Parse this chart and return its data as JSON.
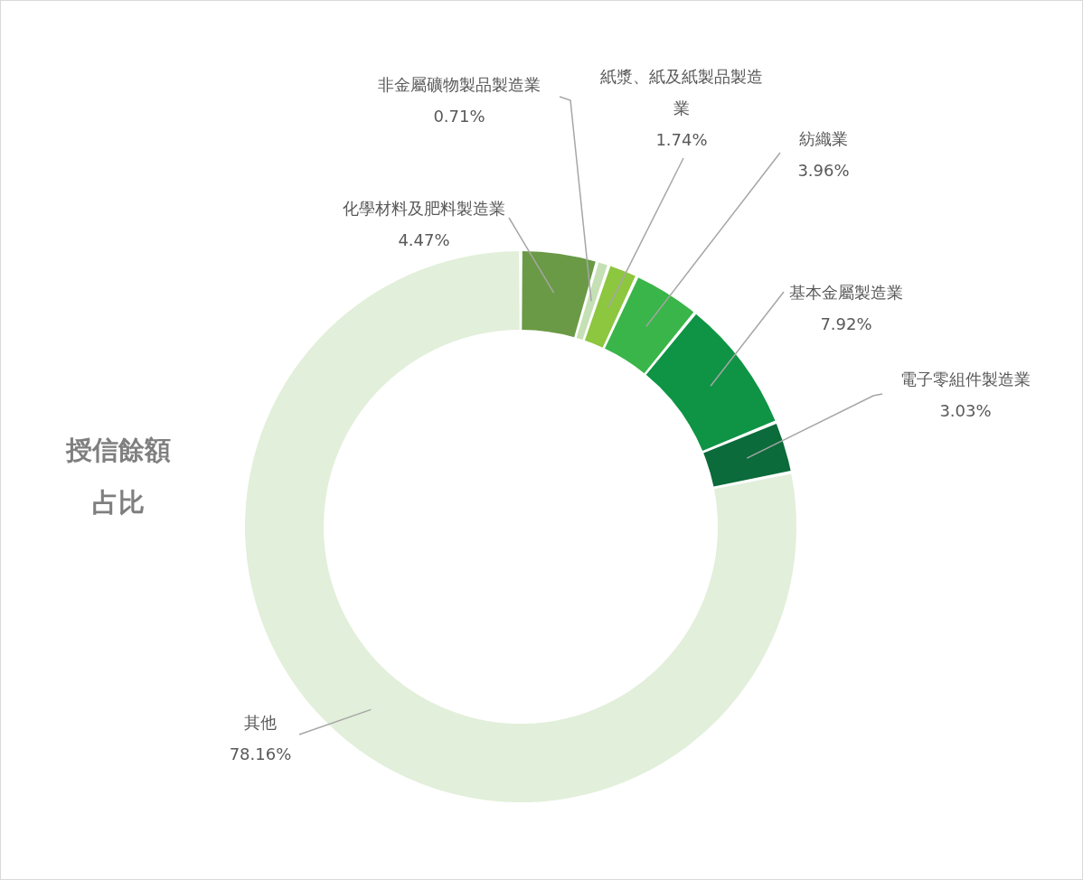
{
  "chart_data": {
    "type": "donut",
    "title": "授信餘額占比",
    "categories": [
      "化學材料及肥料製造業",
      "非金屬礦物製品製造業",
      "紙漿、紙及紙製品製造業",
      "紡織業",
      "基本金屬製造業",
      "電子零組件製造業",
      "其他"
    ],
    "values": [
      4.47,
      0.71,
      1.74,
      3.96,
      7.92,
      3.03,
      78.16
    ],
    "value_labels": [
      "4.47%",
      "0.71%",
      "1.74%",
      "3.96%",
      "7.92%",
      "3.03%",
      "78.16%"
    ],
    "colors": [
      "#6a9a45",
      "#c5e0b4",
      "#8dc63f",
      "#3ab54a",
      "#0e9444",
      "#0b6b3a",
      "#e2efda"
    ]
  }
}
